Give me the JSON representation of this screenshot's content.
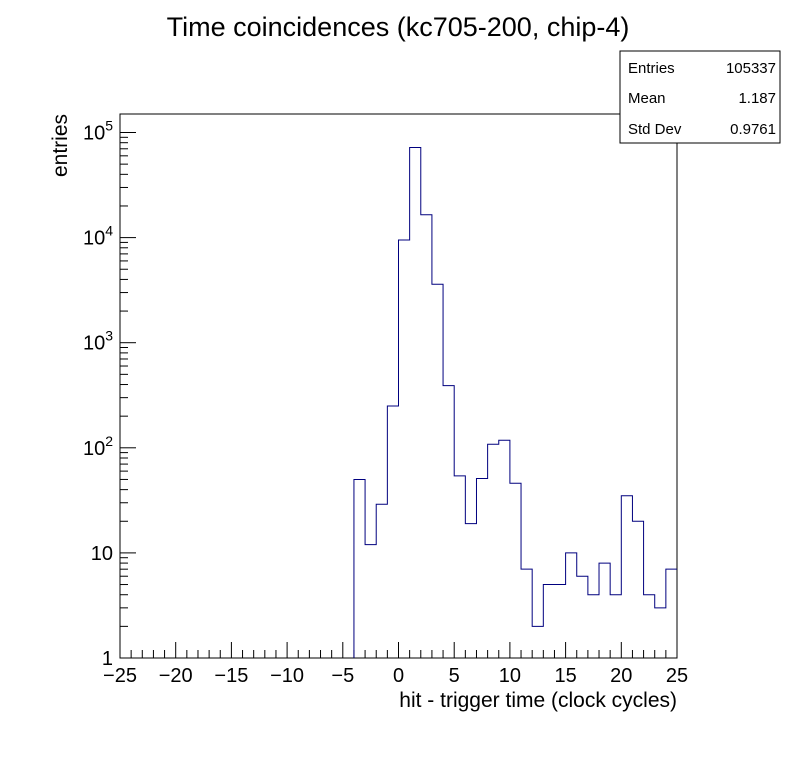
{
  "chart_data": {
    "type": "histogram",
    "title": "Time coincidences (kc705-200, chip-4)",
    "xlabel": "hit - trigger time (clock cycles)",
    "ylabel": "entries",
    "xlim": [
      -25,
      25
    ],
    "ylim": [
      1,
      150000
    ],
    "y_scale": "log",
    "grid": false,
    "line_color": "#00007f",
    "bin_width": 1,
    "x_ticks": [
      -25,
      -20,
      -15,
      -10,
      -5,
      0,
      5,
      10,
      15,
      20,
      25
    ],
    "x_tick_labels": [
      "−25",
      "−20",
      "−15",
      "−10",
      "−5",
      "0",
      "5",
      "10",
      "15",
      "20",
      "25"
    ],
    "y_ticks": [
      {
        "value": 1,
        "base": "1",
        "exp": ""
      },
      {
        "value": 10,
        "base": "10",
        "exp": ""
      },
      {
        "value": 100,
        "base": "10",
        "exp": "2"
      },
      {
        "value": 1000,
        "base": "10",
        "exp": "3"
      },
      {
        "value": 10000,
        "base": "10",
        "exp": "4"
      },
      {
        "value": 100000,
        "base": "10",
        "exp": "5"
      }
    ],
    "bins": [
      {
        "x": -4,
        "count": 50
      },
      {
        "x": -3,
        "count": 12
      },
      {
        "x": -2,
        "count": 29
      },
      {
        "x": -1,
        "count": 250
      },
      {
        "x": 0,
        "count": 9500
      },
      {
        "x": 1,
        "count": 72000
      },
      {
        "x": 2,
        "count": 16500
      },
      {
        "x": 3,
        "count": 3600
      },
      {
        "x": 4,
        "count": 390
      },
      {
        "x": 5,
        "count": 54
      },
      {
        "x": 6,
        "count": 19
      },
      {
        "x": 7,
        "count": 51
      },
      {
        "x": 8,
        "count": 108
      },
      {
        "x": 9,
        "count": 118
      },
      {
        "x": 10,
        "count": 46
      },
      {
        "x": 11,
        "count": 7
      },
      {
        "x": 12,
        "count": 2
      },
      {
        "x": 13,
        "count": 5
      },
      {
        "x": 14,
        "count": 5
      },
      {
        "x": 15,
        "count": 10
      },
      {
        "x": 16,
        "count": 6
      },
      {
        "x": 17,
        "count": 4
      },
      {
        "x": 18,
        "count": 8
      },
      {
        "x": 19,
        "count": 4
      },
      {
        "x": 20,
        "count": 35
      },
      {
        "x": 21,
        "count": 20
      },
      {
        "x": 22,
        "count": 4
      },
      {
        "x": 23,
        "count": 3
      },
      {
        "x": 24,
        "count": 7
      }
    ]
  },
  "stats": {
    "entries_label": "Entries",
    "entries_value": "105337",
    "mean_label": "Mean",
    "mean_value": "1.187",
    "stddev_label": "Std Dev",
    "stddev_value": "0.9761"
  }
}
